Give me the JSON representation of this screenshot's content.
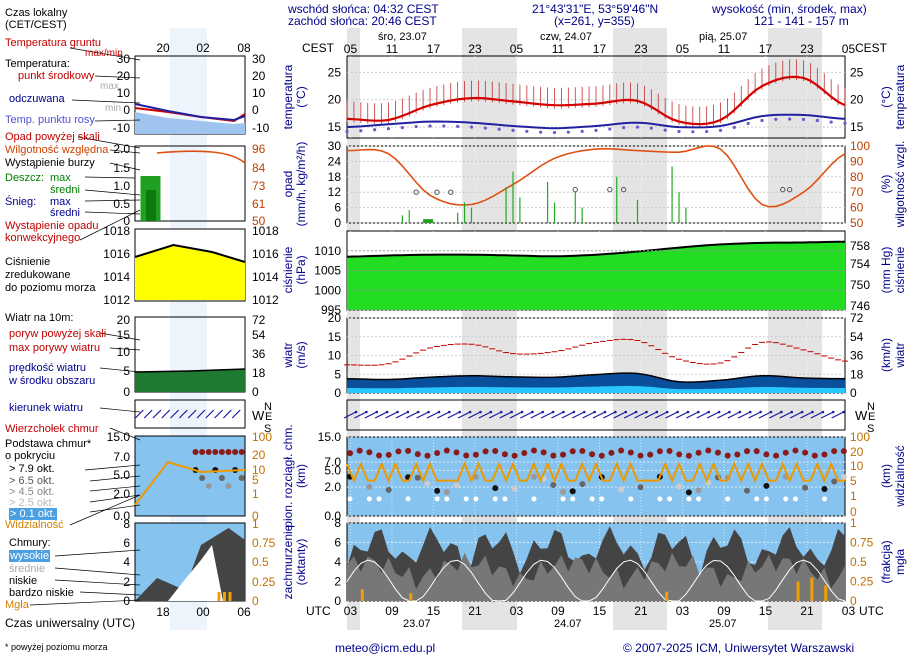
{
  "header": {
    "sunrise": "wschód słońca: 04:32 CEST",
    "sunset": "zachód słońca: 20:46 CEST",
    "coords": "21°43'31\"E, 53°59'46\"N",
    "grid": "(x=261, y=355)",
    "elevation_title": "wysokość (min, środek, max)",
    "elevation_values": "121 - 141 - 157 m"
  },
  "time": {
    "cest_label": "CEST",
    "utc_label": "UTC",
    "days_top": [
      "śro, 23.07",
      "czw, 24.07",
      "pią, 25.07"
    ],
    "days_bottom": [
      "23.07",
      "24.07",
      "25.07"
    ],
    "cest_ticks": [
      "05",
      "11",
      "17",
      "23",
      "05",
      "11",
      "17",
      "23",
      "05",
      "11",
      "17",
      "23",
      "05"
    ],
    "utc_ticks": [
      "03",
      "09",
      "15",
      "21",
      "03",
      "09",
      "15",
      "21",
      "03",
      "09",
      "15",
      "21",
      "03"
    ],
    "legend_top_ticks": [
      "20",
      "02",
      "08"
    ],
    "legend_bottom_ticks": [
      "18",
      "00",
      "06"
    ]
  },
  "legend": {
    "local_time": "Czas lokalny",
    "local_time_zone": "(CET/CEST)",
    "ground_temp": "Temperatura gruntu",
    "ground_temp_sub": "max/min",
    "temperature": "Temperatura:",
    "mid_point": "punkt środkowy",
    "max_label": "max",
    "min_label": "min",
    "perceived": "odczuwana",
    "dew_point": "Temp. punktu rosy",
    "precip_above": "Opad powyżej skali",
    "rel_humidity": "Wilgotność względna",
    "storm": "Wystąpienie burzy",
    "rain": "Deszcz:",
    "avg": "średni",
    "snow": "Śnieg:",
    "precip_occurrence": "Wystąpienie opadu",
    "convective": "konwekcyjnego",
    "pressure_1": "Ciśnienie",
    "pressure_2": "zredukowane",
    "pressure_3": "do poziomu morza",
    "wind_at": "Wiatr na 10m:",
    "gust_above": "poryw powyżej skali",
    "max_gusts": "max porywy wiatru",
    "wind_speed": "prędkość wiatru",
    "in_area": "w środku obszaru",
    "wind_dir": "kierunek wiatru",
    "cloud_top": "Wierzchołek chmur",
    "cloud_base": "Podstawa chmur*",
    "by_cover": "o pokryciu",
    "okt": [
      "> 7.9 okt.",
      "> 6.5 okt.",
      "> 4.5 okt.",
      "> 2.5 okt.",
      "> 0.1 okt."
    ],
    "visibility": "Widzialność",
    "clouds": "Chmury:",
    "high": "wysokie",
    "middle": "średnie",
    "low": "niskie",
    "very_low": "bardzo niskie",
    "fog": "Mgła",
    "utc_time": "Czas uniwersalny (UTC)",
    "footnote": "* powyżej poziomu morza"
  },
  "footer": {
    "email": "meteo@icm.edu.pl",
    "copyright": "© 2007-2025 ICM, Uniwersytet Warszawski"
  },
  "panels": {
    "temp_left": "temperatura",
    "temp_left_unit": "(°C)",
    "temp_right": "temperatura",
    "temp_right_unit": "(°C)",
    "precip_left": "opad",
    "precip_left_unit": "(mm/h, kg/m²/h)",
    "precip_right": "wilgotność wzgl.",
    "precip_right_unit": "(%)",
    "press_left": "ciśnienie",
    "press_left_unit": "(hPa)",
    "press_right": "ciśnienie",
    "press_right_unit": "(mm Hg)",
    "wind_left": "wiatr",
    "wind_left_unit": "(m/s)",
    "wind_right": "wiatr",
    "wind_right_unit": "(km/h)",
    "cloud_left_1": "pion. rozciągł. chm.",
    "cloud_left_2": "(km)",
    "cloud_right": "widzialność",
    "cloud_right_unit": "(km)",
    "cover_left_1": "zachmurzenie",
    "cover_left_2": "(oktanty)",
    "cover_right_1": "mgła",
    "cover_right_2": "(frakcja)"
  },
  "compass": {
    "n": "N",
    "w": "W",
    "e": "E",
    "s": "S"
  },
  "chart_data": [
    {
      "type": "line",
      "name": "temperature",
      "ylim": [
        13,
        28
      ],
      "yticks": [
        "15",
        "20",
        "25"
      ],
      "x_hours_utc": [
        0,
        6,
        12,
        18,
        24,
        30,
        36,
        42,
        48,
        54,
        60,
        66,
        72
      ],
      "series": [
        {
          "name": "punkt środkowy",
          "values": [
            16.5,
            16.3,
            19.0,
            20.3,
            19.7,
            19.0,
            19.3,
            19.8,
            16.0,
            16.3,
            22.5,
            24.0,
            19.0
          ]
        },
        {
          "name": "Temp. punktu rosy",
          "values": [
            15.0,
            15.5,
            16.0,
            15.8,
            15.2,
            14.8,
            15.2,
            15.8,
            15.0,
            15.2,
            17.0,
            17.2,
            16.5
          ]
        }
      ]
    },
    {
      "type": "bar",
      "name": "precipitation",
      "ylim": [
        0,
        30
      ],
      "yticks": [
        "0",
        "6",
        "12",
        "18",
        "24",
        "30"
      ],
      "y2lim": [
        50,
        100
      ],
      "y2ticks": [
        "50",
        "60",
        "70",
        "80",
        "90",
        "100"
      ],
      "humidity": [
        97,
        95,
        68,
        62,
        75,
        92,
        98,
        97,
        96,
        98,
        62,
        70,
        95
      ]
    },
    {
      "type": "area",
      "name": "pressure",
      "ylim": [
        995,
        1015
      ],
      "yticks": [
        "995",
        "1000",
        "1005",
        "1010"
      ],
      "y2ticks": [
        "746",
        "750",
        "754",
        "758"
      ],
      "values": [
        1008.5,
        1008.8,
        1009.0,
        1009.0,
        1008.8,
        1008.6,
        1009.0,
        1009.8,
        1010.8,
        1011.6,
        1012.0,
        1012.1,
        1012.3
      ]
    },
    {
      "type": "line",
      "name": "wind",
      "ylim": [
        0,
        20
      ],
      "yticks": [
        "0",
        "5",
        "10",
        "15",
        "20"
      ],
      "y2ticks": [
        "0",
        "18",
        "36",
        "54",
        "72"
      ],
      "series": [
        {
          "name": "max porywy wiatru",
          "values": [
            7.5,
            7.8,
            12.0,
            13.0,
            10.5,
            11.0,
            13.5,
            14.0,
            9.0,
            8.0,
            13.5,
            11.5,
            8.5
          ]
        },
        {
          "name": "prędkość wiatru",
          "values": [
            3.8,
            3.6,
            4.2,
            4.6,
            4.3,
            4.2,
            4.9,
            5.2,
            3.0,
            3.4,
            4.6,
            4.0,
            3.8
          ]
        }
      ]
    },
    {
      "type": "scatter",
      "name": "clouds",
      "ylim": [
        0,
        15
      ],
      "yticks": [
        "0.0",
        "2.0",
        "5.0",
        "7.0",
        "15.0"
      ],
      "y2ticks": [
        "0",
        "1",
        "5",
        "10",
        "20",
        "100"
      ]
    },
    {
      "type": "area",
      "name": "cloud cover",
      "ylim": [
        0,
        8
      ],
      "yticks": [
        "0",
        "2",
        "4",
        "6",
        "8"
      ],
      "y2ticks": [
        "0",
        "0.25",
        "0.5",
        "0.75",
        "1"
      ]
    }
  ],
  "colors": {
    "header_blue": "#00008b",
    "temp_red": "#d40000",
    "humidity_orange": "#e05010",
    "pressure_green": "#22dd22",
    "pressure_yellow": "#ffff00",
    "sky_blue": "#86c3ef",
    "wind_dark": "#0a4f9c",
    "wind_light": "#28c8ff",
    "cloud_gray": "#555555",
    "vis_orange": "#ee9900"
  }
}
